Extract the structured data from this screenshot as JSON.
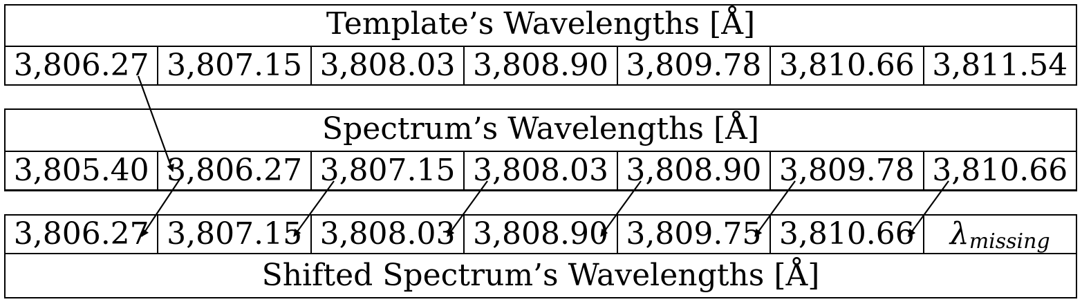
{
  "template": {
    "title": "Template’s Wavelengths [Å]",
    "values": [
      "3,806.27",
      "3,807.15",
      "3,808.03",
      "3,808.90",
      "3,809.78",
      "3,810.66",
      "3,811.54"
    ]
  },
  "spectrum": {
    "title": "Spectrum’s Wavelengths [Å]",
    "values": [
      "3,805.40",
      "3,806.27",
      "3,807.15",
      "3,808.03",
      "3,808.90",
      "3,809.78",
      "3,810.66"
    ]
  },
  "shifted": {
    "title": "Shifted Spectrum’s Wavelengths [Å]",
    "values": [
      "3,806.27",
      "3,807.15",
      "3,808.03",
      "3,808.90",
      "3,809.75",
      "3,810.66"
    ],
    "missing_symbol": "λ",
    "missing_subscript": "missing"
  }
}
